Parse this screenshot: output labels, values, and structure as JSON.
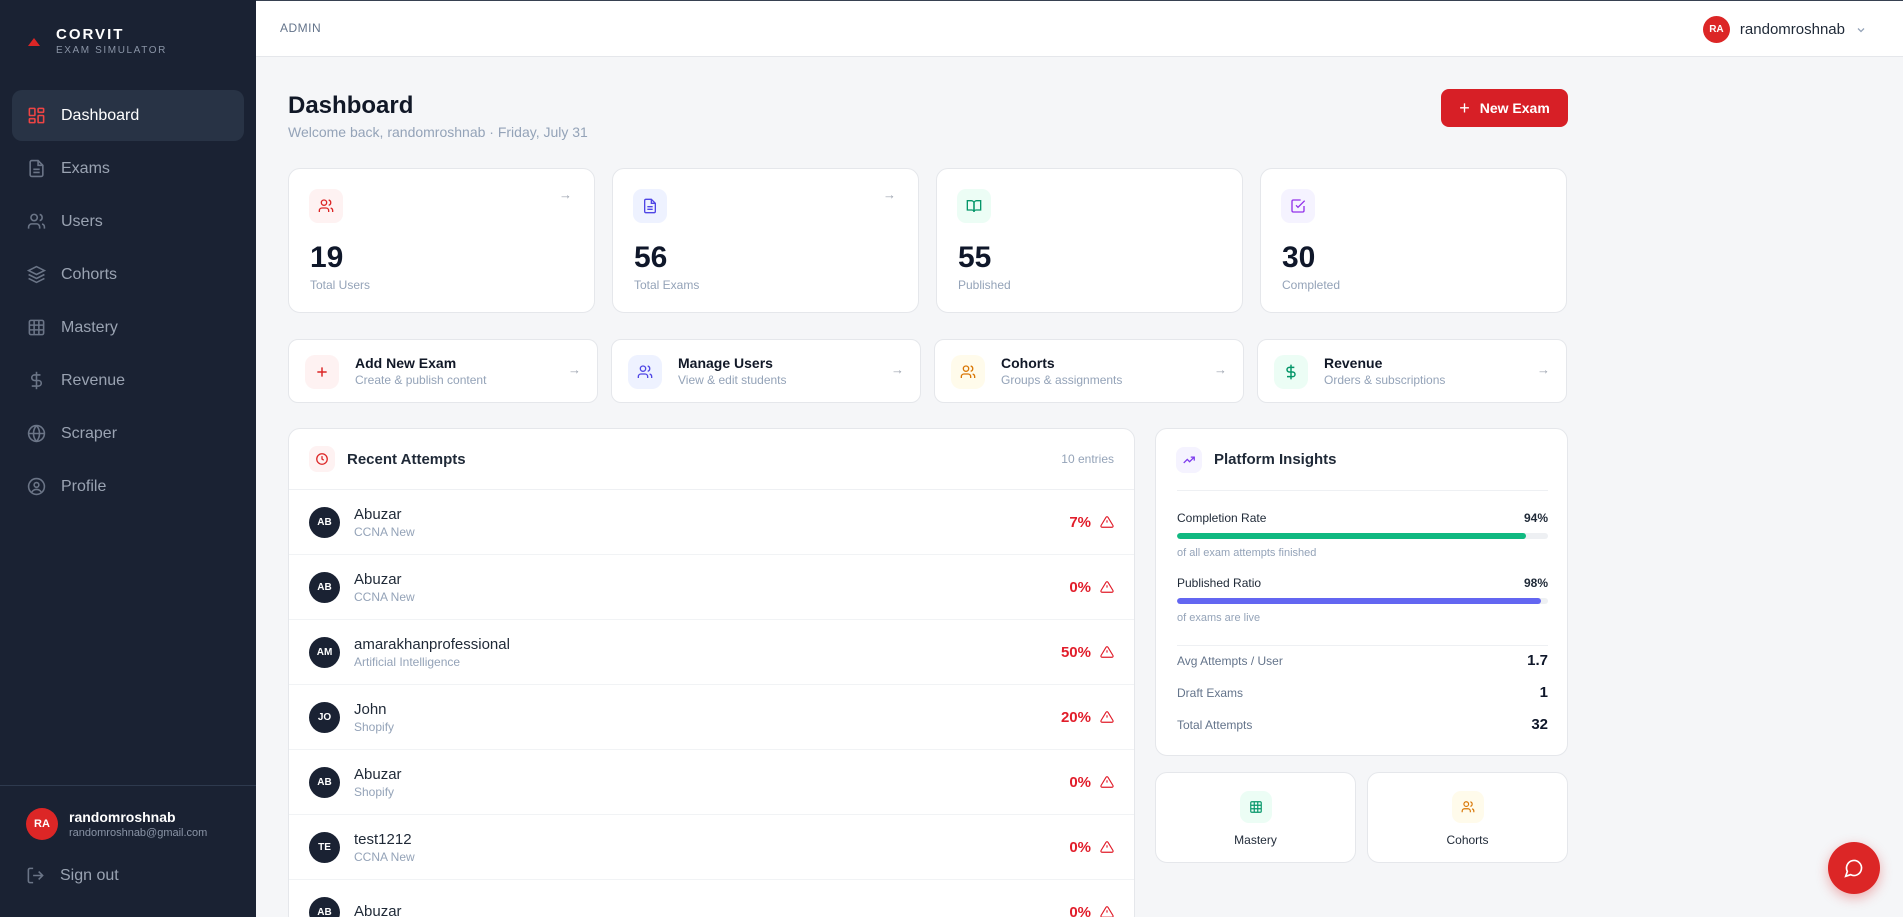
{
  "brand": {
    "name": "CORVIT",
    "subtitle": "EXAM SIMULATOR"
  },
  "sidebar": {
    "items": [
      {
        "label": "Dashboard",
        "icon": "dashboard-icon",
        "active": true
      },
      {
        "label": "Exams",
        "icon": "file-icon",
        "active": false
      },
      {
        "label": "Users",
        "icon": "users-icon",
        "active": false
      },
      {
        "label": "Cohorts",
        "icon": "layers-icon",
        "active": false
      },
      {
        "label": "Mastery",
        "icon": "grid-icon",
        "active": false
      },
      {
        "label": "Revenue",
        "icon": "dollar-icon",
        "active": false
      },
      {
        "label": "Scraper",
        "icon": "globe-icon",
        "active": false
      },
      {
        "label": "Profile",
        "icon": "user-circle-icon",
        "active": false
      }
    ],
    "user": {
      "initials": "RA",
      "name": "randomroshnab",
      "email": "randomroshnab@gmail.com"
    },
    "signout": "Sign out"
  },
  "topbar": {
    "breadcrumb": "ADMIN",
    "user_initials": "RA",
    "user_name": "randomroshnab"
  },
  "header": {
    "title": "Dashboard",
    "subtitle": "Welcome back, randomroshnab · Friday, July 31",
    "new_exam_label": "New Exam"
  },
  "stats": [
    {
      "value": "19",
      "label": "Total Users",
      "icon": "users-icon",
      "color": "#dc2626",
      "bg": "#fef2f2"
    },
    {
      "value": "56",
      "label": "Total Exams",
      "icon": "file-icon",
      "color": "#4f46e5",
      "bg": "#eef2ff"
    },
    {
      "value": "55",
      "label": "Published",
      "icon": "book-open-icon",
      "color": "#059669",
      "bg": "#ecfdf5"
    },
    {
      "value": "30",
      "label": "Completed",
      "icon": "check-square-icon",
      "color": "#9333ea",
      "bg": "#f5f3ff"
    }
  ],
  "quick_actions": [
    {
      "title": "Add New Exam",
      "subtitle": "Create & publish content",
      "icon": "plus-icon",
      "color": "#dc2626",
      "bg": "#fef2f2"
    },
    {
      "title": "Manage Users",
      "subtitle": "View & edit students",
      "icon": "users-icon",
      "color": "#4f46e5",
      "bg": "#eef2ff"
    },
    {
      "title": "Cohorts",
      "subtitle": "Groups & assignments",
      "icon": "users-icon",
      "color": "#d97706",
      "bg": "#fffbeb"
    },
    {
      "title": "Revenue",
      "subtitle": "Orders & subscriptions",
      "icon": "dollar-icon",
      "color": "#059669",
      "bg": "#ecfdf5"
    }
  ],
  "recent": {
    "title": "Recent Attempts",
    "count": "10 entries",
    "rows": [
      {
        "initials": "AB",
        "name": "Abuzar",
        "exam": "CCNA New",
        "score": "7%"
      },
      {
        "initials": "AB",
        "name": "Abuzar",
        "exam": "CCNA New",
        "score": "0%"
      },
      {
        "initials": "AM",
        "name": "amarakhanprofessional",
        "exam": "Artificial Intelligence",
        "score": "50%"
      },
      {
        "initials": "JO",
        "name": "John",
        "exam": "Shopify",
        "score": "20%"
      },
      {
        "initials": "AB",
        "name": "Abuzar",
        "exam": "Shopify",
        "score": "0%"
      },
      {
        "initials": "TE",
        "name": "test1212",
        "exam": "CCNA New",
        "score": "0%"
      },
      {
        "initials": "AB",
        "name": "Abuzar",
        "exam": "",
        "score": "0%"
      }
    ]
  },
  "insights": {
    "title": "Platform Insights",
    "metrics": [
      {
        "label": "Completion Rate",
        "value": "94%",
        "fraction": 0.94,
        "note": "of all exam attempts finished",
        "color": "#10b981"
      },
      {
        "label": "Published Ratio",
        "value": "98%",
        "fraction": 0.98,
        "note": "of exams are live",
        "color": "#6366f1"
      }
    ],
    "kv": [
      {
        "label": "Avg Attempts / User",
        "value": "1.7"
      },
      {
        "label": "Draft Exams",
        "value": "1"
      },
      {
        "label": "Total Attempts",
        "value": "32"
      }
    ]
  },
  "mini_links": [
    {
      "label": "Mastery",
      "icon": "grid-icon",
      "color": "#059669",
      "bg": "#ecfdf5"
    },
    {
      "label": "Cohorts",
      "icon": "users-icon",
      "color": "#d97706",
      "bg": "#fffbeb"
    }
  ]
}
